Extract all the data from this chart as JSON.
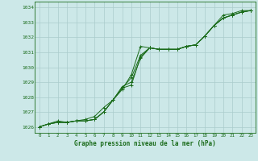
{
  "title": "Graphe pression niveau de la mer (hPa)",
  "xlabel_hours": [
    0,
    1,
    2,
    3,
    4,
    5,
    6,
    7,
    8,
    9,
    10,
    11,
    12,
    13,
    14,
    15,
    16,
    17,
    18,
    19,
    20,
    21,
    22,
    23
  ],
  "ylim": [
    1025.6,
    1034.4
  ],
  "yticks": [
    1026,
    1027,
    1028,
    1029,
    1030,
    1031,
    1032,
    1033,
    1034
  ],
  "bg_color": "#cce8e8",
  "grid_color": "#aacccc",
  "line_color": "#1a6b1a",
  "series": [
    [
      1026.0,
      1026.2,
      1026.3,
      1026.3,
      1026.4,
      1026.5,
      1026.7,
      1027.3,
      1027.8,
      1028.5,
      1029.5,
      1031.4,
      1031.3,
      1031.2,
      1031.2,
      1031.2,
      1031.4,
      1031.5,
      1032.1,
      1032.8,
      1033.5,
      1033.6,
      1033.8,
      1033.8
    ],
    [
      1026.0,
      1026.2,
      1026.4,
      1026.3,
      1026.4,
      1026.4,
      1026.5,
      1027.0,
      1027.8,
      1028.6,
      1029.3,
      1030.8,
      1031.3,
      1031.2,
      1031.2,
      1031.2,
      1031.4,
      1031.5,
      1032.1,
      1032.8,
      1033.3,
      1033.5,
      1033.7,
      1033.8
    ],
    [
      1026.0,
      1026.2,
      1026.3,
      1026.3,
      1026.4,
      1026.4,
      1026.5,
      1027.0,
      1027.8,
      1028.7,
      1029.0,
      1030.6,
      1031.3,
      1031.2,
      1031.2,
      1031.2,
      1031.4,
      1031.5,
      1032.1,
      1032.8,
      1033.3,
      1033.5,
      1033.7,
      1033.8
    ],
    [
      1026.0,
      1026.2,
      1026.3,
      1026.3,
      1026.4,
      1026.4,
      1026.5,
      1027.0,
      1027.8,
      1028.6,
      1028.8,
      1030.7,
      1031.3,
      1031.2,
      1031.2,
      1031.2,
      1031.4,
      1031.5,
      1032.1,
      1032.8,
      1033.3,
      1033.5,
      1033.7,
      1033.8
    ]
  ]
}
